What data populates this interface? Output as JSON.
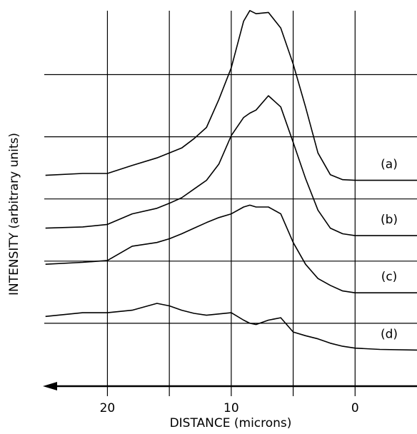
{
  "chart_data": {
    "type": "line",
    "ylabel": "INTENSITY (arbitrary units)",
    "xlabel": "DISTANCE (microns)",
    "xlim": [
      25.1,
      -5
    ],
    "ylim": [
      0,
      6.2
    ],
    "xticks": [
      20,
      10,
      0
    ],
    "xgrid": [
      20,
      15,
      10,
      5,
      0
    ],
    "ygrid": [
      1,
      2,
      3,
      4,
      5
    ],
    "color": "#000000",
    "x": [
      25,
      22,
      20,
      18,
      16,
      15,
      14,
      13,
      12,
      11,
      10,
      9,
      8.5,
      8,
      7,
      6,
      5,
      4,
      3,
      2,
      1,
      0,
      -2,
      -5
    ],
    "series": [
      {
        "name": "(a)",
        "values": [
          3.38,
          3.41,
          3.41,
          3.54,
          3.66,
          3.74,
          3.82,
          3.97,
          4.15,
          4.6,
          5.11,
          5.86,
          6.03,
          5.98,
          6.0,
          5.75,
          5.17,
          4.48,
          3.74,
          3.39,
          3.31,
          3.3,
          3.3,
          3.3
        ]
      },
      {
        "name": "(b)",
        "values": [
          2.53,
          2.55,
          2.59,
          2.76,
          2.85,
          2.93,
          3.02,
          3.16,
          3.3,
          3.56,
          4.02,
          4.31,
          4.38,
          4.43,
          4.66,
          4.48,
          3.91,
          3.33,
          2.82,
          2.53,
          2.44,
          2.41,
          2.41,
          2.41
        ]
      },
      {
        "name": "(c)",
        "values": [
          1.95,
          1.98,
          2.01,
          2.24,
          2.3,
          2.36,
          2.44,
          2.53,
          2.62,
          2.7,
          2.76,
          2.87,
          2.9,
          2.87,
          2.87,
          2.76,
          2.3,
          1.95,
          1.72,
          1.61,
          1.52,
          1.49,
          1.49,
          1.49
        ]
      },
      {
        "name": "(d)",
        "values": [
          1.11,
          1.17,
          1.17,
          1.21,
          1.32,
          1.28,
          1.21,
          1.16,
          1.13,
          1.15,
          1.17,
          1.05,
          1.0,
          0.98,
          1.05,
          1.09,
          0.86,
          0.8,
          0.75,
          0.68,
          0.63,
          0.6,
          0.58,
          0.57
        ]
      }
    ]
  }
}
